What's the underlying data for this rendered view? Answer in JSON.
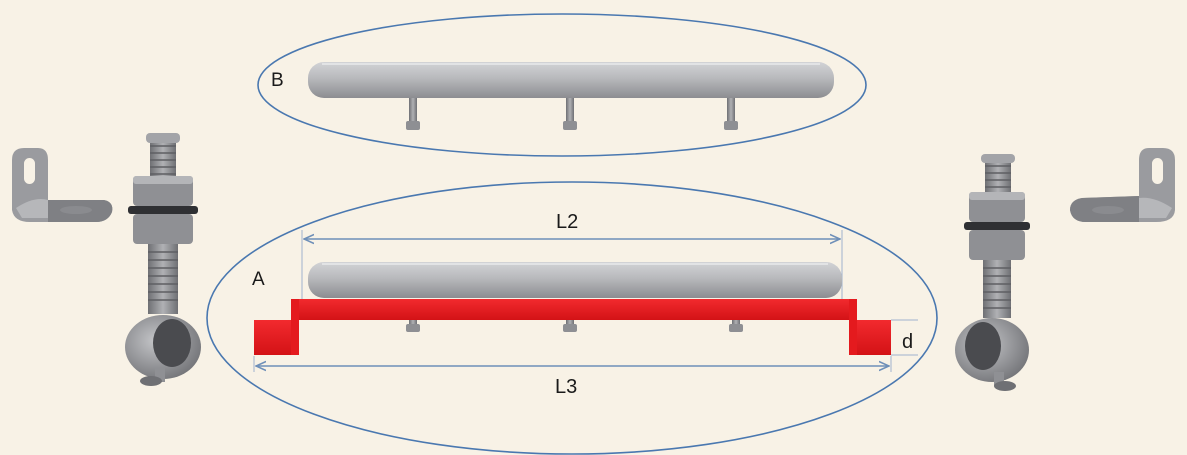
{
  "diagram": {
    "assembly_b": {
      "label": "B"
    },
    "assembly_a": {
      "label": "A",
      "dimensions": {
        "l2": "L2",
        "l3": "L3",
        "d": "d"
      }
    }
  },
  "colors": {
    "background": "#f8f2e6",
    "outline": "#4a78b0",
    "highlight_red": "#e8161b",
    "metal_grey": "#a9aaad",
    "dimension_line": "#6e8fb8"
  }
}
